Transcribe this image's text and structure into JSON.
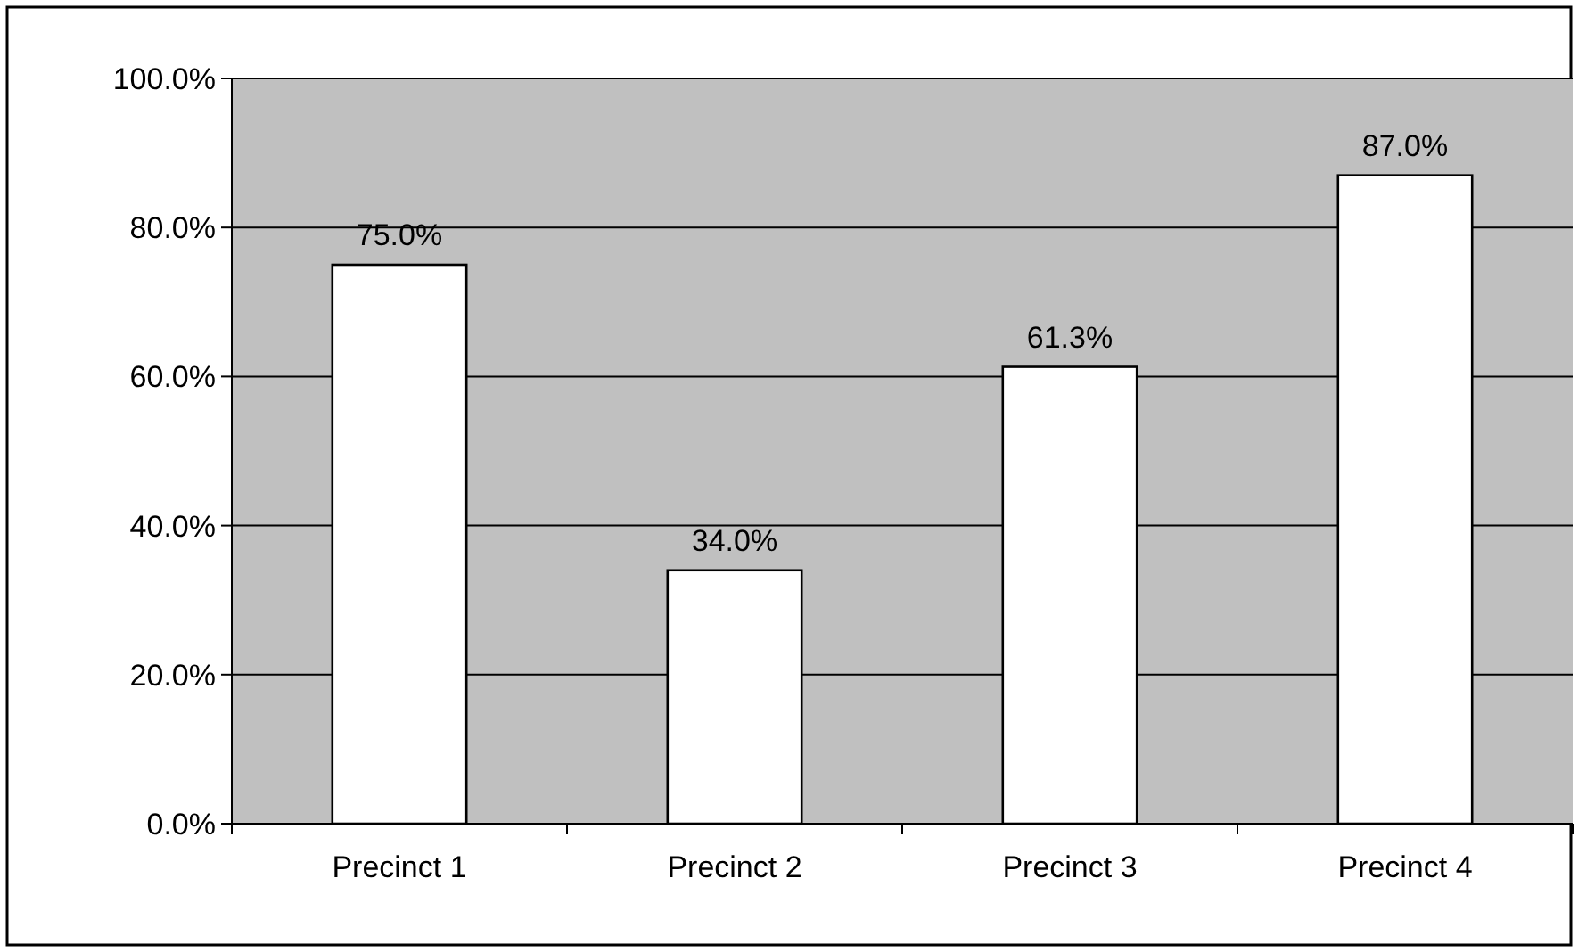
{
  "chart_data": {
    "type": "bar",
    "categories": [
      "Precinct 1",
      "Precinct 2",
      "Precinct 3",
      "Precinct 4"
    ],
    "values": [
      75,
      34,
      61.3,
      87
    ],
    "value_labels": [
      "75.0%",
      "34.0%",
      "61.3%",
      "87.0%"
    ],
    "color": "#ffffff",
    "ylim": [
      0,
      100
    ],
    "yticks": [
      {
        "value": 0,
        "label": "0.0%"
      },
      {
        "value": 20,
        "label": "20.0%"
      },
      {
        "value": 40,
        "label": "40.0%"
      },
      {
        "value": 60,
        "label": "60.0%"
      },
      {
        "value": 80,
        "label": "80.0%"
      },
      {
        "value": 100,
        "label": "100.0%"
      }
    ],
    "grid": "y"
  }
}
